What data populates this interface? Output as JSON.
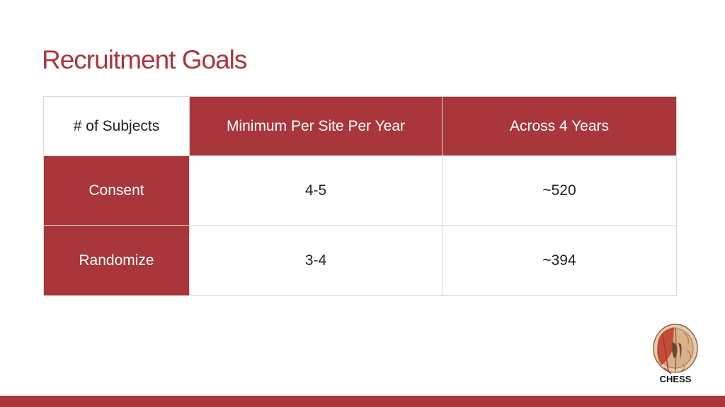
{
  "slide": {
    "title": "Recruitment Goals"
  },
  "table": {
    "header": {
      "corner": "# of Subjects",
      "col1": "Minimum Per Site Per Year",
      "col2": "Across 4 Years"
    },
    "rows": [
      {
        "label": "Consent",
        "per_site_per_year": "4-5",
        "across_4_years": "~520"
      },
      {
        "label": "Randomize",
        "per_site_per_year": "3-4",
        "across_4_years": "~394"
      }
    ]
  },
  "logo": {
    "text": "CHESS",
    "icon": "brain-icon"
  },
  "colors": {
    "accent": "#a8363b",
    "background": "#ffffff"
  }
}
